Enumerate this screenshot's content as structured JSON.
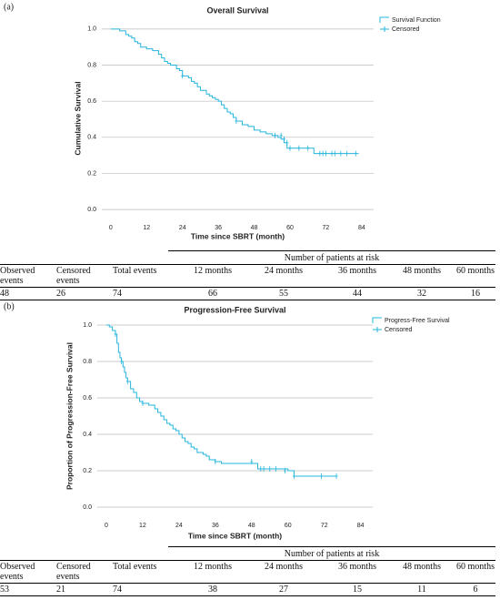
{
  "panel_labels": [
    "(a)",
    "(b)"
  ],
  "chart_data": [
    {
      "type": "step",
      "title": "Overall Survival",
      "x_label": "Time since SBRT (month)",
      "y_label": "Cumulative Survival",
      "xlim": [
        -3,
        88
      ],
      "ylim": [
        -0.06,
        1.07
      ],
      "xticks": [
        0,
        12,
        24,
        36,
        48,
        60,
        72,
        84
      ],
      "yticks": [
        {
          "value": 0,
          "label": "0.0"
        },
        0.2,
        0.4,
        0.6,
        0.8,
        {
          "value": 1,
          "label": "1.0"
        }
      ],
      "grid": true,
      "legend": "top-right",
      "series": [
        {
          "name": "Survival Function",
          "color": "#25b4dc",
          "x": [
            0,
            3,
            5,
            6,
            7,
            8,
            9,
            10,
            12,
            14,
            16,
            17,
            18,
            19,
            20,
            22,
            23,
            24,
            26,
            27,
            28,
            29,
            30,
            32,
            33,
            34,
            35,
            36,
            37,
            38,
            39,
            40,
            41,
            42,
            44,
            46,
            48,
            50,
            52,
            54,
            56,
            57,
            58,
            59,
            68,
            83
          ],
          "values": [
            1,
            0.99,
            0.97,
            0.96,
            0.95,
            0.93,
            0.92,
            0.9,
            0.89,
            0.88,
            0.86,
            0.84,
            0.82,
            0.81,
            0.8,
            0.78,
            0.77,
            0.74,
            0.73,
            0.71,
            0.7,
            0.68,
            0.66,
            0.64,
            0.63,
            0.62,
            0.61,
            0.6,
            0.58,
            0.56,
            0.54,
            0.53,
            0.51,
            0.49,
            0.47,
            0.46,
            0.44,
            0.43,
            0.42,
            0.41,
            0.4,
            0.39,
            0.37,
            0.34,
            0.31,
            0.31
          ]
        },
        {
          "name": "Censored",
          "color": "#25b4dc",
          "x": [
            24,
            42,
            55,
            57,
            58,
            59,
            60,
            63,
            66,
            70,
            71,
            72,
            74,
            75,
            77,
            79,
            82
          ],
          "values": [
            0.74,
            0.49,
            0.41,
            0.41,
            0.39,
            0.37,
            0.34,
            0.34,
            0.34,
            0.31,
            0.31,
            0.31,
            0.31,
            0.31,
            0.31,
            0.31,
            0.31
          ]
        }
      ]
    },
    {
      "type": "step",
      "title": "Progression-Free Survival",
      "x_label": "Time since SBRT (month)",
      "y_label": "Proportion of Progression-Free Survival",
      "xlim": [
        -3,
        88
      ],
      "ylim": [
        -0.06,
        1.06
      ],
      "xticks": [
        0,
        12,
        24,
        36,
        48,
        60,
        72,
        84
      ],
      "yticks": [
        {
          "value": 0,
          "label": "0.0"
        },
        0.2,
        0.4,
        0.6,
        0.8,
        {
          "value": 1,
          "label": "1.0"
        }
      ],
      "grid": true,
      "legend": "top-right",
      "series": [
        {
          "name": "Progress-Free Survival",
          "color": "#25b4dc",
          "x": [
            0,
            1,
            2,
            3,
            3.5,
            4,
            4.5,
            5,
            5.5,
            6,
            6.5,
            7,
            8,
            9,
            10,
            11,
            12,
            14,
            16,
            17,
            18,
            19,
            20,
            21,
            22,
            23,
            24,
            25,
            26,
            27,
            28,
            29,
            30,
            32,
            33,
            34,
            36,
            38,
            50,
            60,
            62,
            76
          ],
          "values": [
            1,
            0.99,
            0.97,
            0.95,
            0.9,
            0.85,
            0.82,
            0.8,
            0.77,
            0.74,
            0.71,
            0.69,
            0.65,
            0.63,
            0.6,
            0.58,
            0.57,
            0.56,
            0.54,
            0.52,
            0.5,
            0.48,
            0.46,
            0.45,
            0.43,
            0.42,
            0.4,
            0.38,
            0.36,
            0.35,
            0.33,
            0.32,
            0.3,
            0.29,
            0.28,
            0.26,
            0.25,
            0.24,
            0.21,
            0.2,
            0.17,
            0.17
          ]
        },
        {
          "name": "Censored",
          "color": "#25b4dc",
          "x": [
            3,
            5,
            7,
            12,
            36,
            48,
            51,
            52,
            54,
            56,
            59,
            62,
            71,
            76
          ],
          "values": [
            0.95,
            0.8,
            0.69,
            0.57,
            0.25,
            0.25,
            0.21,
            0.21,
            0.21,
            0.21,
            0.2,
            0.17,
            0.17,
            0.17
          ]
        }
      ]
    }
  ],
  "tables": [
    {
      "group_header": "Number of patients at risk",
      "columns": [
        "Observed events",
        "Censored events",
        "Total events",
        "12 months",
        "24 months",
        "36 months",
        "48 months",
        "60 months"
      ],
      "row": [
        48,
        26,
        74,
        66,
        55,
        44,
        32,
        16
      ]
    },
    {
      "group_header": "Number of patients at risk",
      "columns": [
        "Observed events",
        "Censored events",
        "Total events",
        "12 months",
        "24 months",
        "36 months",
        "48 months",
        "60 months"
      ],
      "row": [
        53,
        21,
        74,
        38,
        27,
        15,
        11,
        6
      ]
    }
  ]
}
